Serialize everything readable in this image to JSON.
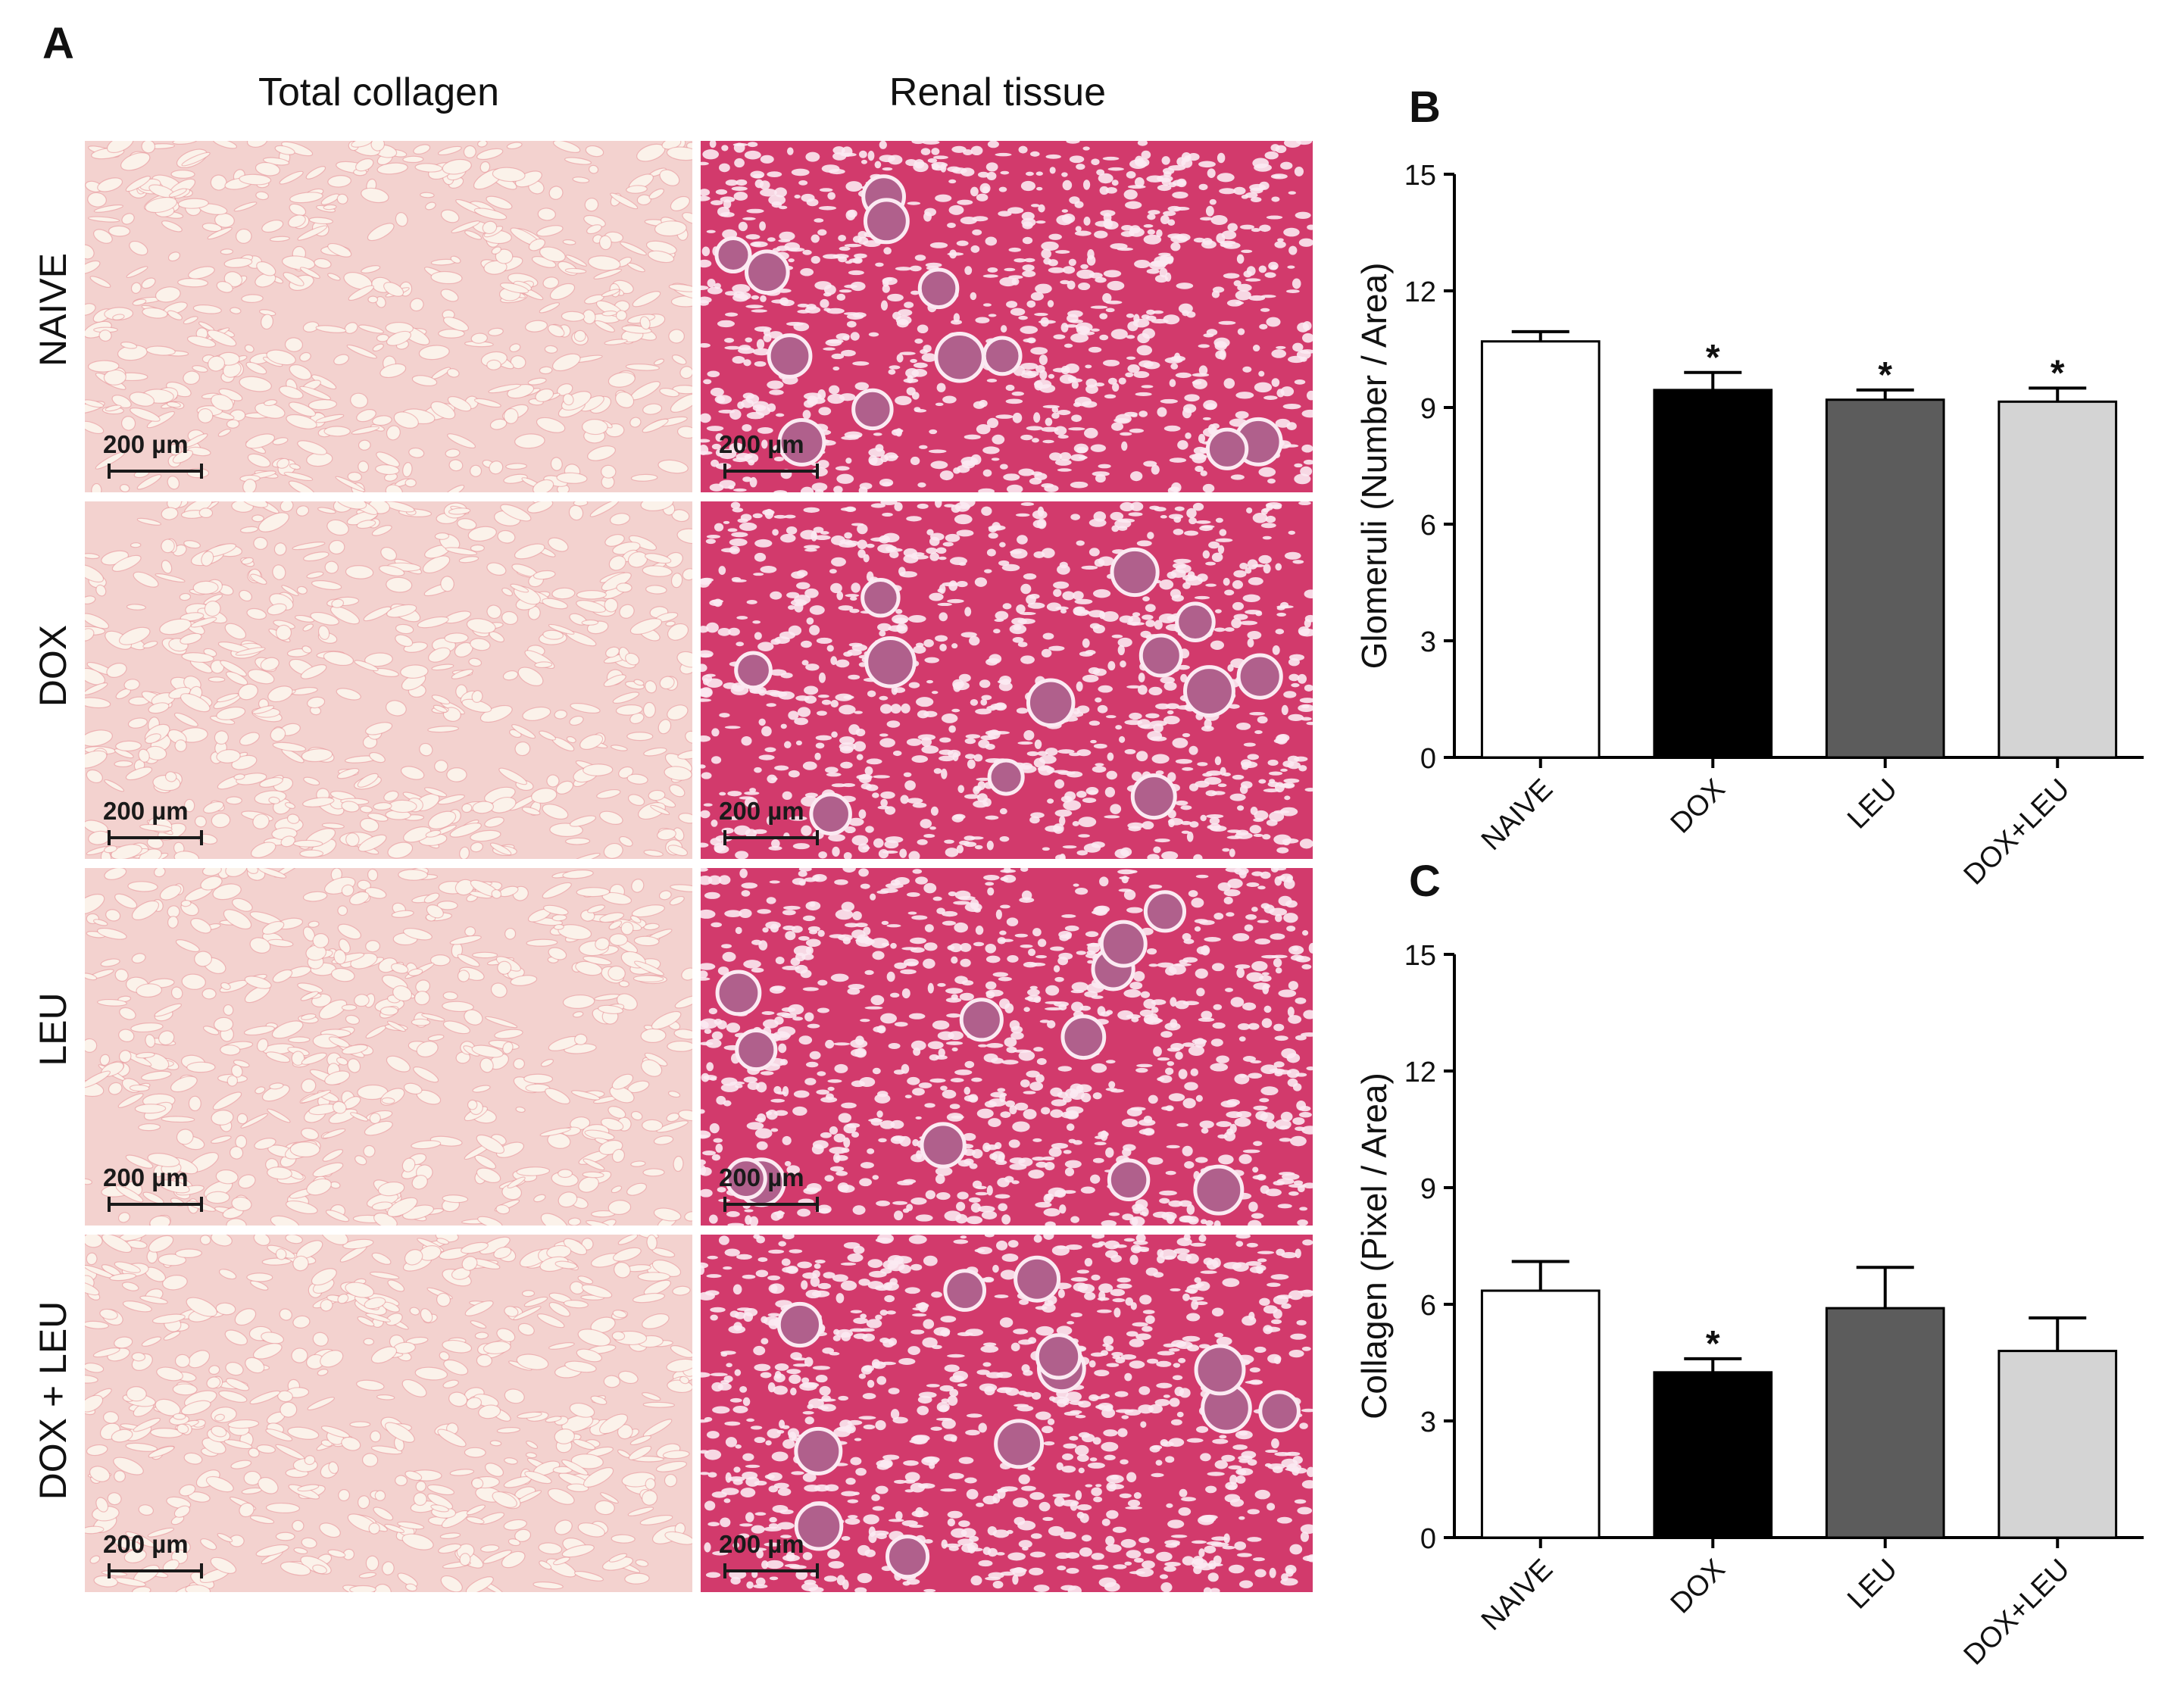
{
  "figure": {
    "panel_a_letter": "A",
    "panel_b_letter": "B",
    "panel_c_letter": "C",
    "column_titles": [
      "Total collagen",
      "Renal tissue"
    ],
    "row_labels": [
      "NAIVE",
      "DOX",
      "LEU",
      "DOX + LEU"
    ],
    "scale_bar_label": "200 µm",
    "colors": {
      "collagen_bg": "#f3d2cf",
      "collagen_lumen": "#fbf2ea",
      "collagen_fiber": "#e27c84",
      "renal_bg": "#d23a6c",
      "renal_lumen": "#fbeaf2",
      "glomerulus": "#b0608c"
    }
  },
  "chart_data": [
    {
      "type": "bar",
      "panel": "B",
      "categories": [
        "NAIVE",
        "DOX",
        "LEU",
        "DOX+LEU"
      ],
      "values": [
        10.7,
        9.45,
        9.2,
        9.15
      ],
      "errors": [
        0.25,
        0.45,
        0.25,
        0.35
      ],
      "significance": [
        "",
        "*",
        "*",
        "*"
      ],
      "bar_colors": [
        "#ffffff",
        "#000000",
        "#5c5c5c",
        "#d4d4d4"
      ],
      "ylabel": "Glomeruli (Number / Area)",
      "ylim": [
        0,
        15
      ],
      "yticks": [
        "0",
        "3",
        "6",
        "9",
        "12",
        "15"
      ]
    },
    {
      "type": "bar",
      "panel": "C",
      "categories": [
        "NAIVE",
        "DOX",
        "LEU",
        "DOX+LEU"
      ],
      "values": [
        6.35,
        4.25,
        5.9,
        4.8
      ],
      "errors": [
        0.75,
        0.35,
        1.05,
        0.85
      ],
      "significance": [
        "",
        "*",
        "",
        ""
      ],
      "bar_colors": [
        "#ffffff",
        "#000000",
        "#5c5c5c",
        "#d4d4d4"
      ],
      "ylabel": "Collagen (Pixel / Area)",
      "ylim": [
        0,
        15
      ],
      "yticks": [
        "0",
        "3",
        "6",
        "9",
        "12",
        "15"
      ]
    }
  ]
}
